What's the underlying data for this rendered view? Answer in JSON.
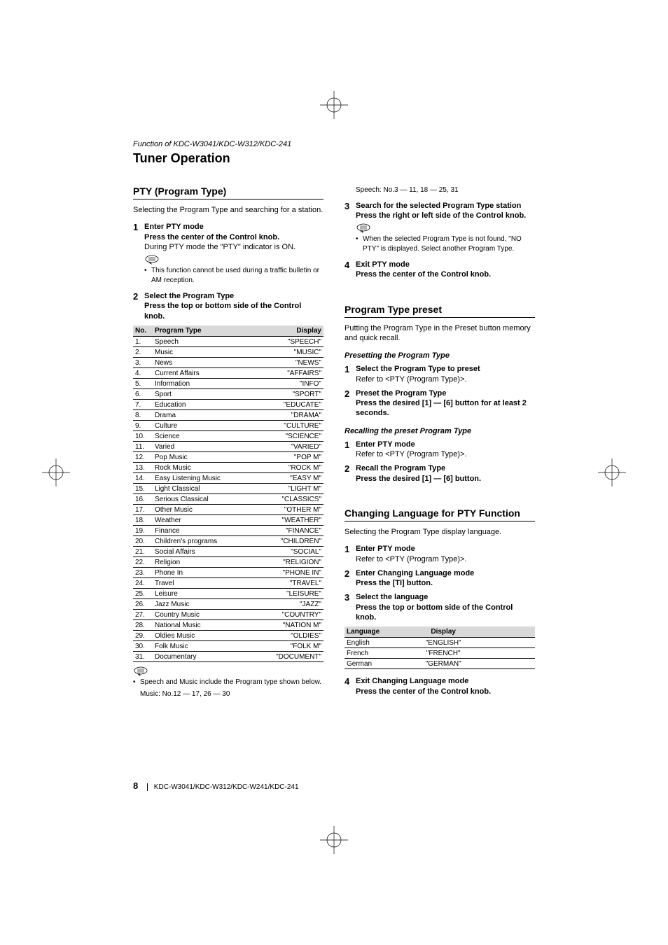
{
  "header": {
    "function_line": "Function of KDC-W3041/KDC-W312/KDC-241",
    "title": "Tuner Operation"
  },
  "left": {
    "section_head": "PTY (Program Type)",
    "intro": "Selecting the Program Type and searching for a station.",
    "step1": {
      "num": "1",
      "title": "Enter PTY mode",
      "sub": "Press the center of the Control knob.",
      "text": "During PTY mode the \"PTY\" indicator is ON.",
      "note": "This function cannot be used during a traffic bulletin or AM reception."
    },
    "step2": {
      "num": "2",
      "title": "Select the Program Type",
      "sub": "Press the top or bottom side of the Control knob."
    },
    "table": {
      "headers": [
        "No.",
        "Program Type",
        "Display"
      ],
      "rows": [
        [
          "1.",
          "Speech",
          "\"SPEECH\""
        ],
        [
          "2.",
          "Music",
          "\"MUSIC\""
        ],
        [
          "3.",
          "News",
          "\"NEWS\""
        ],
        [
          "4.",
          "Current Affairs",
          "\"AFFAIRS\""
        ],
        [
          "5.",
          "Information",
          "\"INFO\""
        ],
        [
          "6.",
          "Sport",
          "\"SPORT\""
        ],
        [
          "7.",
          "Education",
          "\"EDUCATE\""
        ],
        [
          "8.",
          "Drama",
          "\"DRAMA\""
        ],
        [
          "9.",
          "Culture",
          "\"CULTURE\""
        ],
        [
          "10.",
          "Science",
          "\"SCIENCE\""
        ],
        [
          "11.",
          "Varied",
          "\"VARIED\""
        ],
        [
          "12.",
          "Pop Music",
          "\"POP M\""
        ],
        [
          "13.",
          "Rock Music",
          "\"ROCK M\""
        ],
        [
          "14.",
          "Easy Listening Music",
          "\"EASY M\""
        ],
        [
          "15.",
          "Light Classical",
          "\"LIGHT M\""
        ],
        [
          "16.",
          "Serious Classical",
          "\"CLASSICS\""
        ],
        [
          "17.",
          "Other Music",
          "\"OTHER M\""
        ],
        [
          "18.",
          "Weather",
          "\"WEATHER\""
        ],
        [
          "19.",
          "Finance",
          "\"FINANCE\""
        ],
        [
          "20.",
          "Children's programs",
          "\"CHILDREN\""
        ],
        [
          "21.",
          "Social Affairs",
          "\"SOCIAL\""
        ],
        [
          "22.",
          "Religion",
          "\"RELIGION\""
        ],
        [
          "23.",
          "Phone In",
          "\"PHONE IN\""
        ],
        [
          "24.",
          "Travel",
          "\"TRAVEL\""
        ],
        [
          "25.",
          "Leisure",
          "\"LEISURE\""
        ],
        [
          "26.",
          "Jazz Music",
          "\"JAZZ\""
        ],
        [
          "27.",
          "Country Music",
          "\"COUNTRY\""
        ],
        [
          "28.",
          "National Music",
          "\"NATION M\""
        ],
        [
          "29.",
          "Oldies Music",
          "\"OLDIES\""
        ],
        [
          "30.",
          "Folk Music",
          "\"FOLK M\""
        ],
        [
          "31.",
          "Documentary",
          "\"DOCUMENT\""
        ]
      ]
    },
    "note_after_table": "Speech and Music include the Program type shown below.",
    "note_music": "Music: No.12 — 17, 26 — 30"
  },
  "right": {
    "speech_note": "Speech: No.3 — 11, 18 — 25, 31",
    "step3": {
      "num": "3",
      "title": "Search for the selected Program Type station",
      "sub": "Press the right or left side of the Control knob.",
      "note": "When the selected Program Type is not found, \"NO PTY\" is displayed. Select another Program Type."
    },
    "step4": {
      "num": "4",
      "title": "Exit PTY mode",
      "sub": "Press the center of the Control knob."
    },
    "preset": {
      "head": "Program Type preset",
      "intro": "Putting the Program Type in the Preset button memory and quick recall.",
      "sub1": "Presetting the Program Type",
      "p1": {
        "num": "1",
        "title": "Select the Program Type to preset",
        "ref": "Refer to <PTY (Program Type)>."
      },
      "p2": {
        "num": "2",
        "title": "Preset the Program Type",
        "sub": "Press the desired [1] — [6] button for at least 2 seconds."
      },
      "sub2": "Recalling the preset Program Type",
      "r1": {
        "num": "1",
        "title": "Enter PTY mode",
        "ref": "Refer to <PTY (Program Type)>."
      },
      "r2": {
        "num": "2",
        "title": "Recall the Program Type",
        "sub": "Press the desired [1] — [6] button."
      }
    },
    "lang": {
      "head": "Changing Language for PTY Function",
      "intro": "Selecting the Program Type display language.",
      "s1": {
        "num": "1",
        "title": "Enter PTY mode",
        "ref": "Refer to <PTY (Program Type)>."
      },
      "s2": {
        "num": "2",
        "title": "Enter Changing Language mode",
        "sub": "Press the [TI] button."
      },
      "s3": {
        "num": "3",
        "title": "Select the language",
        "sub": "Press the top or bottom side of the Control knob."
      },
      "table": {
        "headers": [
          "Language",
          "Display"
        ],
        "rows": [
          [
            "English",
            "\"ENGLISH\""
          ],
          [
            "French",
            "\"FRENCH\""
          ],
          [
            "German",
            "\"GERMAN\""
          ]
        ]
      },
      "s4": {
        "num": "4",
        "title": "Exit Changing Language mode",
        "sub": "Press the center of the Control knob."
      }
    }
  },
  "footer": {
    "page_num": "8",
    "models": "KDC-W3041/KDC-W312/KDC-W241/KDC-241"
  }
}
